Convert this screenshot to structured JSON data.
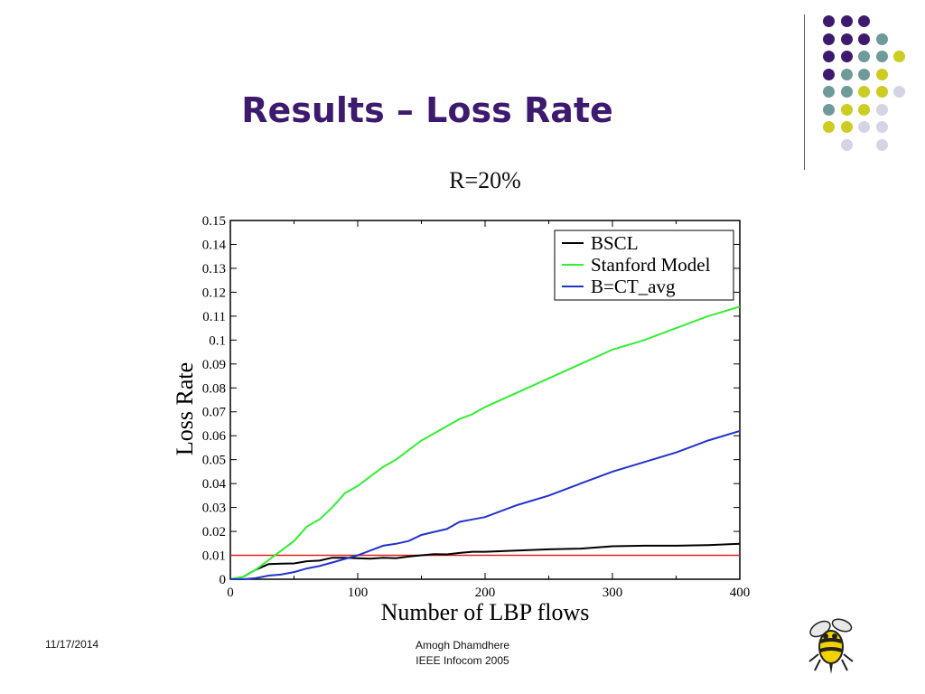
{
  "slide": {
    "title": "Results – Loss Rate",
    "footer_date": "11/17/2014",
    "footer_author": "Amogh Dhamdhere",
    "footer_venue": "IEEE Infocom 2005"
  },
  "colors": {
    "title": "#3d1a6e",
    "purple": "#3d1a6e",
    "teal": "#6f9a9a",
    "yellow": "#cccc22",
    "lavender": "#d4d4e6"
  },
  "decoration": {
    "dot_grid": [
      [
        "purple",
        "purple",
        "purple",
        null,
        null
      ],
      [
        "purple",
        "purple",
        "purple",
        "teal",
        null
      ],
      [
        "purple",
        "purple",
        "teal",
        "teal",
        "yellow"
      ],
      [
        "purple",
        "teal",
        "teal",
        "yellow",
        null
      ],
      [
        "teal",
        "teal",
        "yellow",
        "yellow",
        "lavender"
      ],
      [
        "teal",
        "yellow",
        "yellow",
        "lavender",
        null
      ],
      [
        "yellow",
        "yellow",
        "lavender",
        "lavender",
        null
      ],
      [
        null,
        "lavender",
        null,
        "lavender",
        null
      ]
    ],
    "logo_icon": "yellow-jacket-bee-icon"
  },
  "chart_data": {
    "type": "line",
    "title": "R=20%",
    "xlabel": "Number of LBP flows",
    "ylabel": "Loss Rate",
    "xlim": [
      0,
      400
    ],
    "ylim": [
      0,
      0.15
    ],
    "xticks": [
      "0",
      "100",
      "200",
      "300",
      "400"
    ],
    "yticks": [
      "0",
      "0.01",
      "0.02",
      "0.03",
      "0.04",
      "0.05",
      "0.06",
      "0.07",
      "0.08",
      "0.09",
      "0.1",
      "0.11",
      "0.12",
      "0.13",
      "0.14",
      "0.15"
    ],
    "grid": false,
    "legend_position": "top-right",
    "series": [
      {
        "name": "BSCL",
        "color": "#000000",
        "points": [
          [
            0,
            0
          ],
          [
            10,
            0.001
          ],
          [
            20,
            0.004
          ],
          [
            30,
            0.0063
          ],
          [
            40,
            0.0065
          ],
          [
            50,
            0.0066
          ],
          [
            60,
            0.0075
          ],
          [
            70,
            0.0078
          ],
          [
            80,
            0.009
          ],
          [
            90,
            0.009
          ],
          [
            100,
            0.0088
          ],
          [
            110,
            0.0086
          ],
          [
            120,
            0.009
          ],
          [
            130,
            0.0088
          ],
          [
            140,
            0.0095
          ],
          [
            150,
            0.01
          ],
          [
            160,
            0.0105
          ],
          [
            170,
            0.0104
          ],
          [
            180,
            0.011
          ],
          [
            190,
            0.0115
          ],
          [
            200,
            0.0115
          ],
          [
            225,
            0.012
          ],
          [
            250,
            0.0125
          ],
          [
            275,
            0.0128
          ],
          [
            300,
            0.0138
          ],
          [
            325,
            0.014
          ],
          [
            350,
            0.014
          ],
          [
            375,
            0.0143
          ],
          [
            400,
            0.0148
          ]
        ]
      },
      {
        "name": "Stanford Model",
        "color": "#33ee33",
        "points": [
          [
            0,
            0
          ],
          [
            10,
            0.001
          ],
          [
            20,
            0.004
          ],
          [
            30,
            0.008
          ],
          [
            40,
            0.012
          ],
          [
            50,
            0.016
          ],
          [
            60,
            0.022
          ],
          [
            70,
            0.025
          ],
          [
            80,
            0.03
          ],
          [
            90,
            0.036
          ],
          [
            100,
            0.039
          ],
          [
            110,
            0.043
          ],
          [
            120,
            0.047
          ],
          [
            130,
            0.05
          ],
          [
            140,
            0.054
          ],
          [
            150,
            0.058
          ],
          [
            160,
            0.061
          ],
          [
            170,
            0.064
          ],
          [
            180,
            0.067
          ],
          [
            190,
            0.069
          ],
          [
            200,
            0.072
          ],
          [
            225,
            0.078
          ],
          [
            250,
            0.084
          ],
          [
            275,
            0.09
          ],
          [
            300,
            0.096
          ],
          [
            325,
            0.1
          ],
          [
            350,
            0.105
          ],
          [
            375,
            0.11
          ],
          [
            400,
            0.114
          ]
        ]
      },
      {
        "name": "B=CT_avg",
        "color": "#2233cc",
        "points": [
          [
            0,
            0
          ],
          [
            10,
            0
          ],
          [
            20,
            0.0005
          ],
          [
            30,
            0.0015
          ],
          [
            40,
            0.002
          ],
          [
            50,
            0.003
          ],
          [
            60,
            0.0045
          ],
          [
            70,
            0.0055
          ],
          [
            80,
            0.007
          ],
          [
            90,
            0.0085
          ],
          [
            100,
            0.01
          ],
          [
            110,
            0.012
          ],
          [
            120,
            0.014
          ],
          [
            130,
            0.0148
          ],
          [
            140,
            0.016
          ],
          [
            150,
            0.0185
          ],
          [
            160,
            0.0198
          ],
          [
            170,
            0.021
          ],
          [
            180,
            0.024
          ],
          [
            190,
            0.025
          ],
          [
            200,
            0.026
          ],
          [
            225,
            0.031
          ],
          [
            250,
            0.035
          ],
          [
            275,
            0.04
          ],
          [
            300,
            0.045
          ],
          [
            325,
            0.049
          ],
          [
            350,
            0.053
          ],
          [
            375,
            0.058
          ],
          [
            400,
            0.062
          ]
        ]
      }
    ],
    "reference_lines": [
      {
        "y": 0.01,
        "color": "#dd2222"
      }
    ]
  }
}
